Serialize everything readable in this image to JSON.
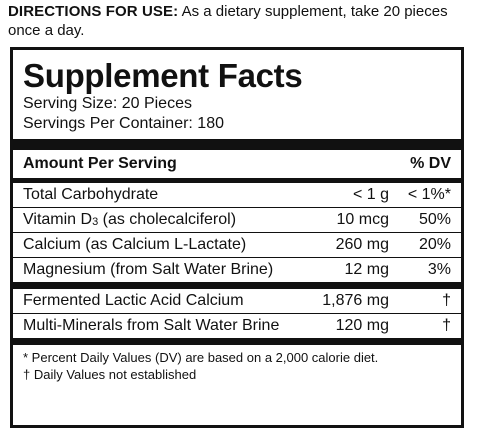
{
  "directions": {
    "label": "DIRECTIONS FOR USE:",
    "text": " As a dietary supplement, take 20 pieces once a day."
  },
  "panel": {
    "title": "Supplement Facts",
    "serving_size": "Serving Size: 20 Pieces",
    "servings_per_container": "Servings Per Container: 180",
    "header": {
      "amount": "Amount Per Serving",
      "dv": "% DV"
    },
    "rows": [
      {
        "name": "Total Carbohydrate",
        "amount": "< 1 g",
        "dv": "< 1%*"
      },
      {
        "name_prefix": "Vitamin D",
        "name_sub": "3",
        "name_suffix": " (as cholecalciferol)",
        "amount": "10 mcg",
        "dv": "50%"
      },
      {
        "name": "Calcium (as Calcium L-Lactate)",
        "amount": "260 mg",
        "dv": "20%"
      },
      {
        "name": "Magnesium (from Salt Water Brine)",
        "amount": "12 mg",
        "dv": "3%"
      }
    ],
    "rows2": [
      {
        "name": "Fermented Lactic Acid Calcium",
        "amount": "1,876 mg",
        "dv": "†"
      },
      {
        "name": "Multi-Minerals from Salt Water Brine",
        "amount": "120 mg",
        "dv": "†"
      }
    ],
    "footnotes": [
      "* Percent Daily Values (DV) are based on a 2,000 calorie diet.",
      "† Daily Values not established"
    ]
  }
}
